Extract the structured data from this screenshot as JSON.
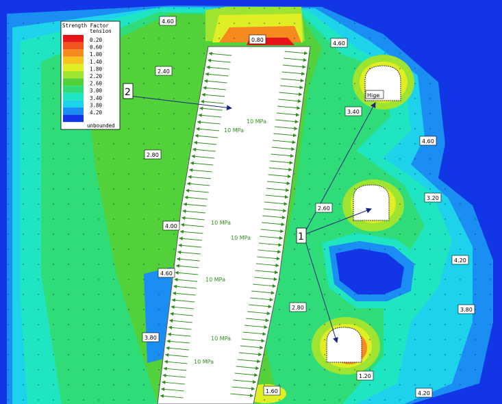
{
  "legend": {
    "title": "Strength Factor",
    "subtitle": "tension",
    "entries": [
      {
        "label": "0.20",
        "color": "#e8141c"
      },
      {
        "label": "0.60",
        "color": "#f0551c"
      },
      {
        "label": "1.00",
        "color": "#f78a1f"
      },
      {
        "label": "1.40",
        "color": "#f9c31f"
      },
      {
        "label": "1.80",
        "color": "#e0ee25"
      },
      {
        "label": "2.20",
        "color": "#9fe430"
      },
      {
        "label": "2.60",
        "color": "#52d13b"
      },
      {
        "label": "3.00",
        "color": "#2fdc78"
      },
      {
        "label": "3.40",
        "color": "#1fe6c0"
      },
      {
        "label": "3.80",
        "color": "#1ed2ec"
      },
      {
        "label": "4.20",
        "color": "#1a8ef2"
      },
      {
        "label": "",
        "color": "#1236e6"
      }
    ],
    "footer": "unbounded"
  },
  "contour_labels": [
    "4.60",
    "0.80",
    "4.60",
    "2.40",
    "3.40",
    "4.60",
    "2.80",
    "3.20",
    "2.60",
    "4.00",
    "4.20",
    "4.60",
    "2.80",
    "3.80",
    "3.80",
    "1.20",
    "1.60",
    "4.20"
  ],
  "load_labels": [
    "10 MPa",
    "10 MPa",
    "10 MPa",
    "10 MPa",
    "10 MPa",
    "10 MPa",
    "10 MPa"
  ],
  "callouts": {
    "one": "1",
    "two": "2"
  },
  "tunnel_label": "Hige",
  "colors": {
    "deep_blue": "#1236e6",
    "blue": "#1a8ef2",
    "cyan": "#1ed2ec",
    "teal": "#1fe6c0",
    "sea_green": "#2fdc78",
    "green": "#52d13b",
    "lime": "#9fe430",
    "yellow": "#e0ee25",
    "orange": "#f78a1f",
    "red": "#e8141c",
    "load_arrow": "#2f8f1e",
    "callout_arrow": "#1a237e"
  }
}
